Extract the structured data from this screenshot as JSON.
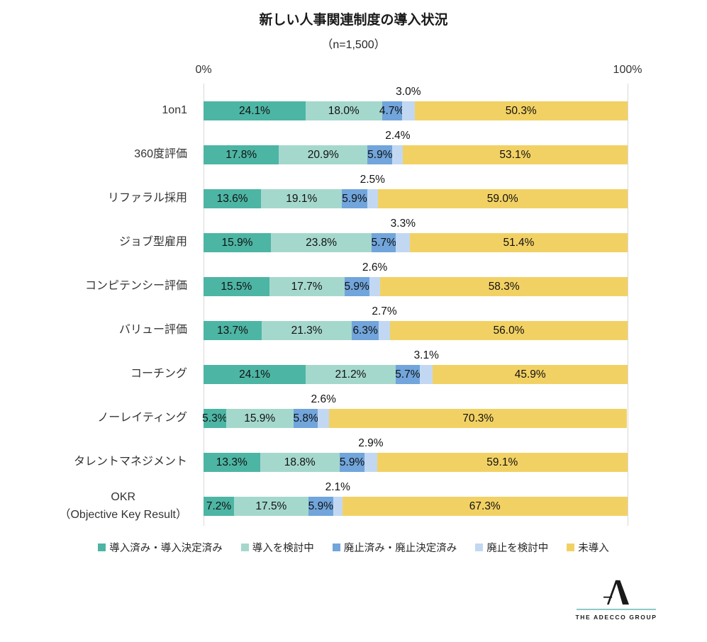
{
  "title": "新しい人事関連制度の導入状況",
  "subtitle": "（n=1,500）",
  "axis": {
    "min_label": "0%",
    "max_label": "100%"
  },
  "chart_data": {
    "type": "bar",
    "stacked": true,
    "orientation": "horizontal",
    "value_unit": "%",
    "xlim": [
      0,
      100
    ],
    "grid": "vertical-edges-only",
    "legend_position": "bottom",
    "sample_note": "n=1,500",
    "categories": [
      [
        "1on1"
      ],
      [
        "360度評価"
      ],
      [
        "リファラル採用"
      ],
      [
        "ジョブ型雇用"
      ],
      [
        "コンピテンシー評価"
      ],
      [
        "バリュー評価"
      ],
      [
        "コーチング"
      ],
      [
        "ノーレイティング"
      ],
      [
        "タレントマネジメント"
      ],
      [
        "OKR",
        "（Objective Key Result）"
      ]
    ],
    "series": [
      {
        "key": "adopted",
        "name": "導入済み・導入決定済み",
        "color": "#4db5a4",
        "values": [
          24.1,
          17.8,
          13.6,
          15.9,
          15.5,
          13.7,
          24.1,
          5.3,
          13.3,
          7.2
        ]
      },
      {
        "key": "considering-adoption",
        "name": "導入を検討中",
        "color": "#a5d8cd",
        "values": [
          18.0,
          20.9,
          19.1,
          23.8,
          17.7,
          21.3,
          21.2,
          15.9,
          18.8,
          17.5
        ]
      },
      {
        "key": "abolished",
        "name": "廃止済み・廃止決定済み",
        "color": "#71a5db",
        "values": [
          4.7,
          5.9,
          5.9,
          5.7,
          5.9,
          6.3,
          5.7,
          5.8,
          5.9,
          5.9
        ]
      },
      {
        "key": "considering-abolition",
        "name": "廃止を検討中",
        "color": "#c2d8f2",
        "values": [
          3.0,
          2.4,
          2.5,
          3.3,
          2.6,
          2.7,
          3.1,
          2.6,
          2.9,
          2.1
        ]
      },
      {
        "key": "not-adopted",
        "name": "未導入",
        "color": "#f2d164",
        "values": [
          50.3,
          53.1,
          59.0,
          51.4,
          58.3,
          56.0,
          45.9,
          70.3,
          59.1,
          67.3
        ]
      }
    ],
    "callout_series": "廃止を検討中",
    "label_format": "0.0%"
  },
  "footer": {
    "logo_text": "THE ADECCO GROUP"
  }
}
